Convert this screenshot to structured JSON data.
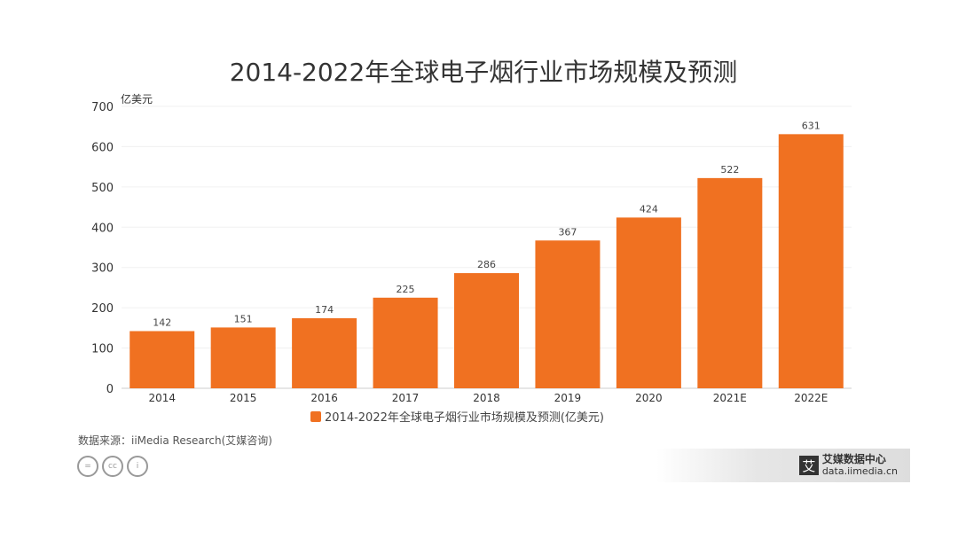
{
  "chart_data": {
    "type": "bar",
    "title": "2014-2022年全球电子烟行业市场规模及预测",
    "ylabel": "亿美元",
    "xlabel": "",
    "categories": [
      "2014",
      "2015",
      "2016",
      "2017",
      "2018",
      "2019",
      "2020",
      "2021E",
      "2022E"
    ],
    "values": [
      142,
      151,
      174,
      225,
      286,
      367,
      424,
      522,
      631
    ],
    "ylim": [
      0,
      700
    ],
    "yticks": [
      0,
      100,
      200,
      300,
      400,
      500,
      600,
      700
    ],
    "legend": "2014-2022年全球电子烟行业市场规模及预测(亿美元)",
    "legend_position": "bottom",
    "grid": true,
    "color": "#f07121"
  },
  "source": "数据来源：iiMedia Research(艾媒咨询)",
  "cc_icons": [
    "=",
    "cc",
    "i"
  ],
  "logo": {
    "mark": "艾",
    "name": "艾媒数据中心",
    "url": "data.iimedia.cn"
  }
}
